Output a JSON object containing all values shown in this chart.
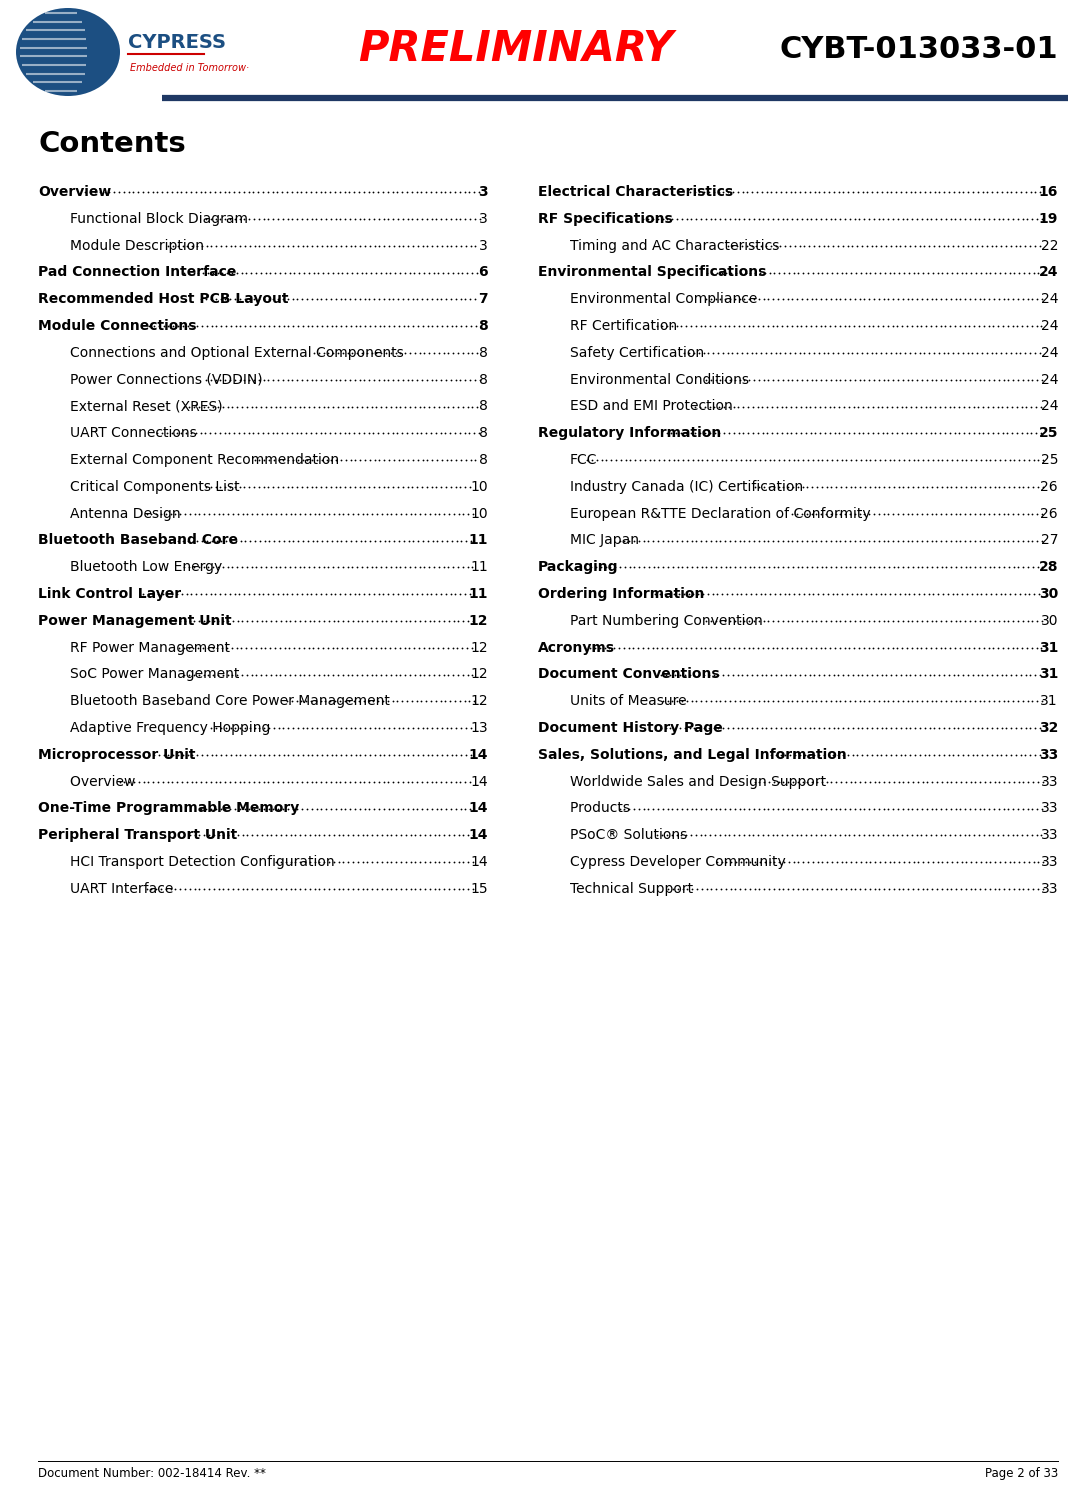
{
  "doc_number": "Document Number: 002-18414 Rev. **",
  "page_info": "Page 2 of 33",
  "preliminary_text": "PRELIMINARY",
  "product_name": "CYBT-013033-01",
  "contents_title": "Contents",
  "header_line_color": "#1f3864",
  "preliminary_color": "#ff0000",
  "product_color": "#000000",
  "bg_color": "#ffffff",
  "text_color": "#000000",
  "left_entries": [
    {
      "text": "Overview",
      "page": "3",
      "bold": true,
      "indent": 0
    },
    {
      "text": "Functional Block Diagram ",
      "page": "3",
      "bold": false,
      "indent": 1
    },
    {
      "text": "Module Description",
      "page": "3",
      "bold": false,
      "indent": 1
    },
    {
      "text": "Pad Connection Interface ",
      "page": "6",
      "bold": true,
      "indent": 0
    },
    {
      "text": "Recommended Host PCB Layout ",
      "page": "7",
      "bold": true,
      "indent": 0
    },
    {
      "text": "Module Connections ",
      "page": "8",
      "bold": true,
      "indent": 0
    },
    {
      "text": "Connections and Optional External Components ",
      "page": "8",
      "bold": false,
      "indent": 1
    },
    {
      "text": "Power Connections (VDDIN)",
      "page": "8",
      "bold": false,
      "indent": 1
    },
    {
      "text": "External Reset (XRES)",
      "page": "8",
      "bold": false,
      "indent": 1
    },
    {
      "text": "UART Connections",
      "page": "8",
      "bold": false,
      "indent": 1
    },
    {
      "text": "External Component Recommendation ",
      "page": "8",
      "bold": false,
      "indent": 1
    },
    {
      "text": "Critical Components List ",
      "page": "10",
      "bold": false,
      "indent": 1
    },
    {
      "text": "Antenna Design",
      "page": "10",
      "bold": false,
      "indent": 1
    },
    {
      "text": "Bluetooth Baseband Core ",
      "page": "11",
      "bold": true,
      "indent": 0
    },
    {
      "text": "Bluetooth Low Energy ",
      "page": "11",
      "bold": false,
      "indent": 1
    },
    {
      "text": "Link Control Layer",
      "page": "11",
      "bold": true,
      "indent": 0
    },
    {
      "text": "Power Management Unit",
      "page": "12",
      "bold": true,
      "indent": 0
    },
    {
      "text": "RF Power Management ",
      "page": "12",
      "bold": false,
      "indent": 1
    },
    {
      "text": "SoC Power Management ",
      "page": "12",
      "bold": false,
      "indent": 1
    },
    {
      "text": "Bluetooth Baseband Core Power Management",
      "page": "12",
      "bold": false,
      "indent": 1
    },
    {
      "text": "Adaptive Frequency Hopping",
      "page": "13",
      "bold": false,
      "indent": 1
    },
    {
      "text": "Microprocessor Unit",
      "page": "14",
      "bold": true,
      "indent": 0
    },
    {
      "text": "Overview ",
      "page": "14",
      "bold": false,
      "indent": 1
    },
    {
      "text": "One-Time Programmable Memory",
      "page": "14",
      "bold": true,
      "indent": 0
    },
    {
      "text": "Peripheral Transport Unit ",
      "page": "14",
      "bold": true,
      "indent": 0
    },
    {
      "text": "HCI Transport Detection Configuration ",
      "page": "14",
      "bold": false,
      "indent": 1
    },
    {
      "text": "UART Interface",
      "page": "15",
      "bold": false,
      "indent": 1
    }
  ],
  "right_entries": [
    {
      "text": "Electrical Characteristics",
      "page": "16",
      "bold": true,
      "indent": 0
    },
    {
      "text": "RF Specifications ",
      "page": "19",
      "bold": true,
      "indent": 0
    },
    {
      "text": "Timing and AC Characteristics",
      "page": "22",
      "bold": false,
      "indent": 1
    },
    {
      "text": "Environmental Specifications ",
      "page": "24",
      "bold": true,
      "indent": 0
    },
    {
      "text": "Environmental Compliance ",
      "page": "24",
      "bold": false,
      "indent": 1
    },
    {
      "text": "RF Certification",
      "page": "24",
      "bold": false,
      "indent": 1
    },
    {
      "text": "Safety Certification ",
      "page": "24",
      "bold": false,
      "indent": 1
    },
    {
      "text": "Environmental Conditions ",
      "page": "24",
      "bold": false,
      "indent": 1
    },
    {
      "text": "ESD and EMI Protection ",
      "page": "24",
      "bold": false,
      "indent": 1
    },
    {
      "text": "Regulatory Information",
      "page": "25",
      "bold": true,
      "indent": 0
    },
    {
      "text": "FCC",
      "page": "25",
      "bold": false,
      "indent": 1
    },
    {
      "text": "Industry Canada (IC) Certification",
      "page": "26",
      "bold": false,
      "indent": 1
    },
    {
      "text": "European R&TTE Declaration of Conformity ",
      "page": "26",
      "bold": false,
      "indent": 1
    },
    {
      "text": "MIC Japan",
      "page": "27",
      "bold": false,
      "indent": 1
    },
    {
      "text": "Packaging",
      "page": "28",
      "bold": true,
      "indent": 0
    },
    {
      "text": "Ordering Information",
      "page": "30",
      "bold": true,
      "indent": 0
    },
    {
      "text": "Part Numbering Convention",
      "page": "30",
      "bold": false,
      "indent": 1
    },
    {
      "text": "Acronyms",
      "page": "31",
      "bold": true,
      "indent": 0
    },
    {
      "text": "Document Conventions ",
      "page": "31",
      "bold": true,
      "indent": 0
    },
    {
      "text": "Units of Measure ",
      "page": "31",
      "bold": false,
      "indent": 1
    },
    {
      "text": "Document History Page",
      "page": "32",
      "bold": true,
      "indent": 0
    },
    {
      "text": "Sales, Solutions, and Legal Information ",
      "page": "33",
      "bold": true,
      "indent": 0
    },
    {
      "text": "Worldwide Sales and Design Support",
      "page": "33",
      "bold": false,
      "indent": 1
    },
    {
      "text": "Products ",
      "page": "33",
      "bold": false,
      "indent": 1
    },
    {
      "text": "PSoC® Solutions ",
      "page": "33",
      "bold": false,
      "indent": 1
    },
    {
      "text": "Cypress Developer Community",
      "page": "33",
      "bold": false,
      "indent": 1
    },
    {
      "text": "Technical Support ",
      "page": "33",
      "bold": false,
      "indent": 1
    }
  ]
}
